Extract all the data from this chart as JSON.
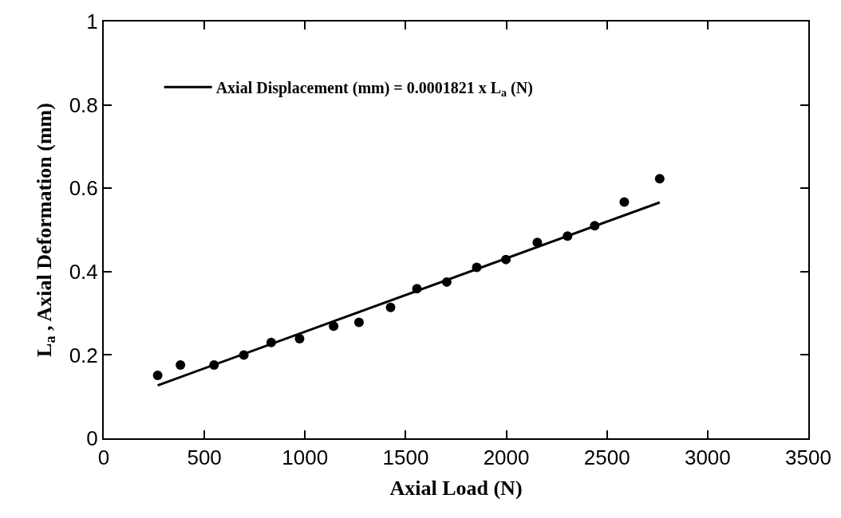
{
  "chart_data": {
    "type": "scatter",
    "xlabel": "Axial Load (N)",
    "ylabel": "L$_{a}$ , Axial Deformation (mm)",
    "xlim": [
      0,
      3500
    ],
    "xticks": [
      0,
      500,
      1000,
      1500,
      2000,
      2500,
      3000,
      3500
    ],
    "ylim": [
      0,
      1
    ],
    "yticks": [
      0,
      0.2,
      0.4,
      0.6,
      0.8,
      1
    ],
    "marker": "circle",
    "grid": false,
    "legend": "top left",
    "series": [
      {
        "color": "#000000",
        "x": [
          268,
          381,
          548,
          696,
          832,
          973,
          1142,
          1268,
          1425,
          1556,
          1704,
          1853,
          1998,
          2154,
          2304,
          2439,
          2586,
          2762
        ],
        "values": [
          0.151,
          0.176,
          0.176,
          0.2,
          0.23,
          0.239,
          0.269,
          0.278,
          0.314,
          0.359,
          0.375,
          0.41,
          0.429,
          0.47,
          0.485,
          0.51,
          0.567,
          0.623
        ]
      },
      {
        "type": "line",
        "name": "Axial Displacement (mm) = 0.0001821 x L$_{a}$ (N)",
        "color": "#000000",
        "marker": "none",
        "line_style": "solid",
        "x": [
          268,
          2762
        ],
        "values": [
          0.127,
          0.566
        ]
      }
    ]
  }
}
